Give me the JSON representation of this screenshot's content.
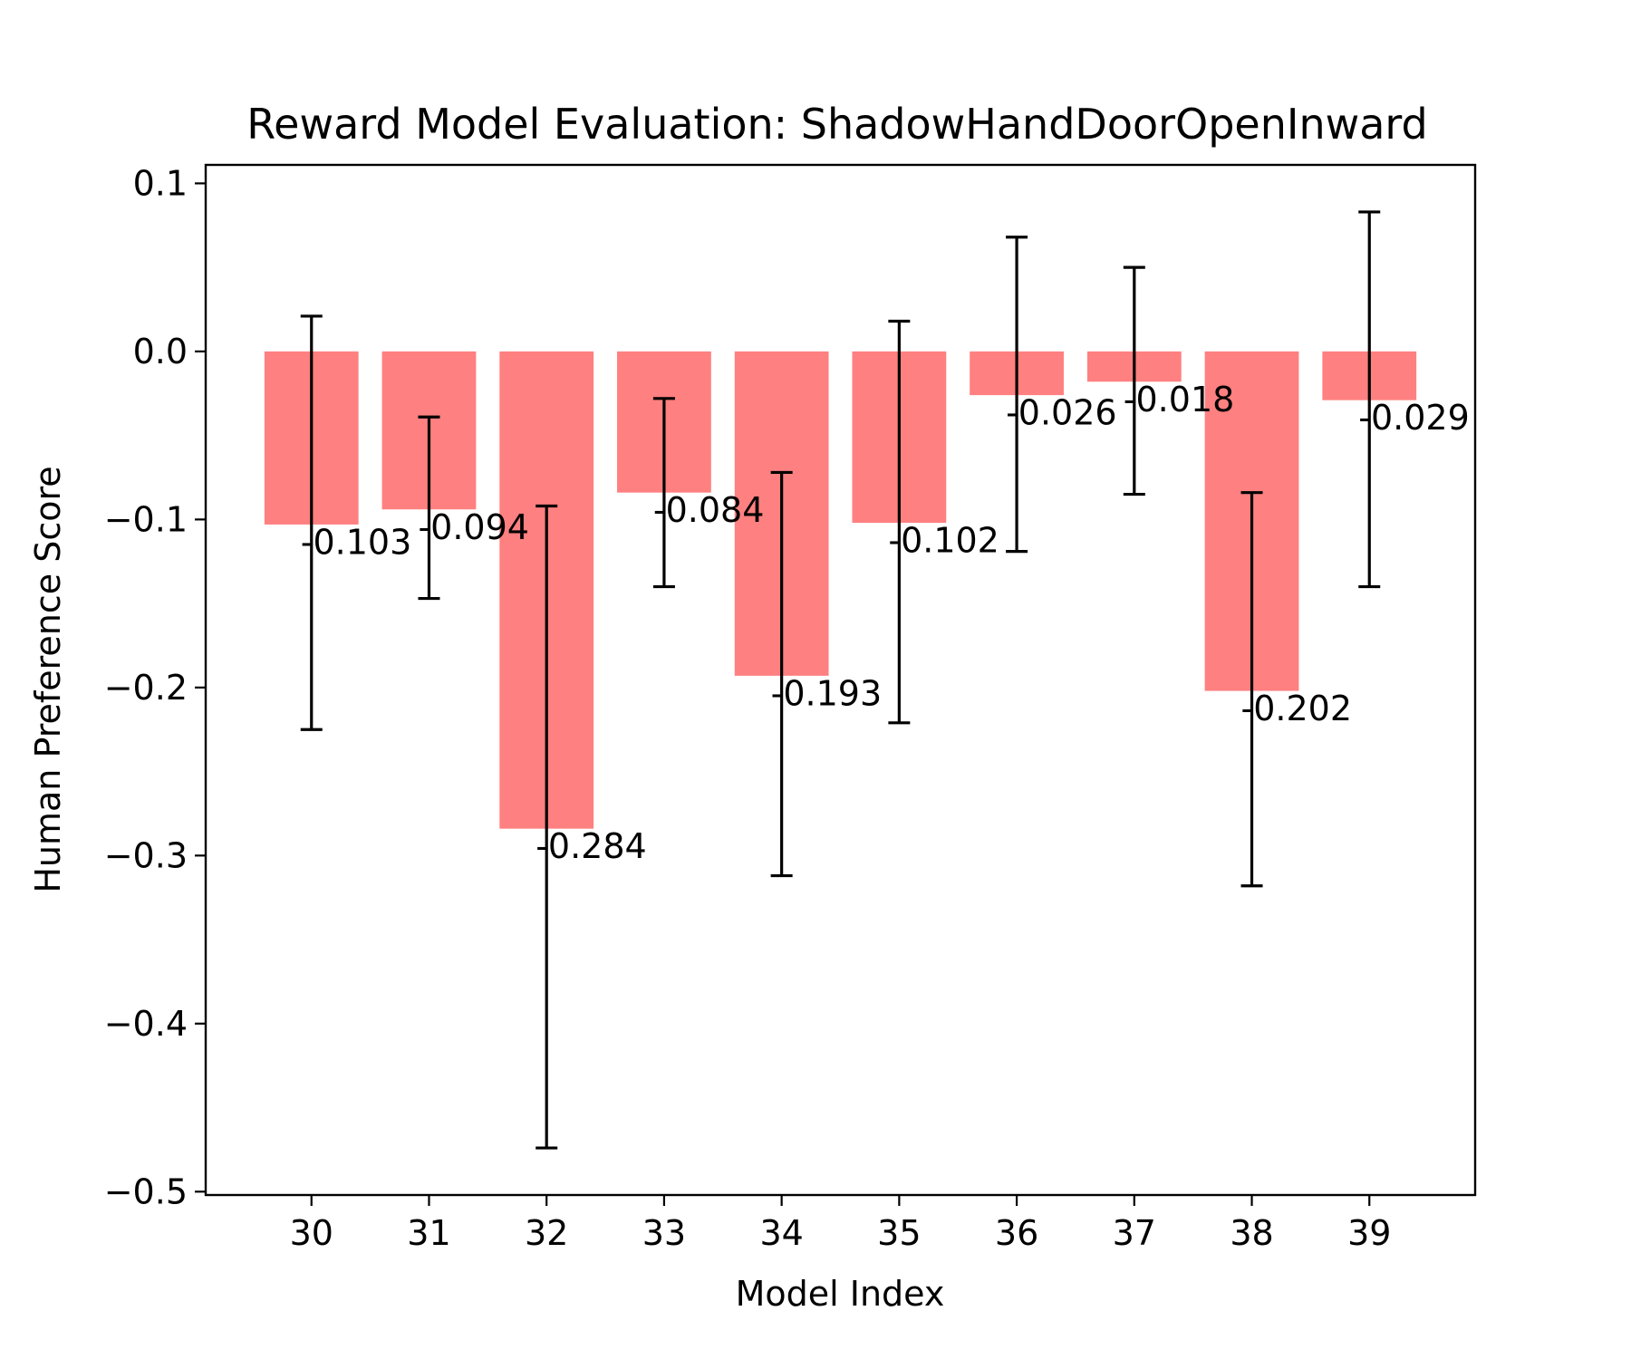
{
  "chart_data": {
    "type": "bar",
    "title": "Reward Model Evaluation: ShadowHandDoorOpenInward",
    "xlabel": "Model Index",
    "ylabel": "Human Preference Score",
    "categories": [
      "30",
      "31",
      "32",
      "33",
      "34",
      "35",
      "36",
      "37",
      "38",
      "39"
    ],
    "values": [
      -0.103,
      -0.094,
      -0.284,
      -0.084,
      -0.193,
      -0.102,
      -0.026,
      -0.018,
      -0.202,
      -0.029
    ],
    "value_labels": [
      "-0.103",
      "-0.094",
      "-0.284",
      "-0.084",
      "-0.193",
      "-0.102",
      "-0.026",
      "-0.018",
      "-0.202",
      "-0.029"
    ],
    "error_low": [
      -0.225,
      -0.147,
      -0.474,
      -0.14,
      -0.312,
      -0.221,
      -0.119,
      -0.085,
      -0.318,
      -0.14
    ],
    "error_high": [
      0.021,
      -0.039,
      -0.092,
      -0.028,
      -0.072,
      0.018,
      0.068,
      0.05,
      -0.084,
      0.083
    ],
    "ylim": [
      -0.502,
      0.111
    ],
    "yticks": [
      0.1,
      0.0,
      -0.1,
      -0.2,
      -0.3,
      -0.4,
      -0.5
    ],
    "ytick_labels": [
      "0.1",
      "0.0",
      "−0.1",
      "−0.2",
      "−0.3",
      "−0.4",
      "−0.5"
    ],
    "grid": false,
    "bar_color": "#ff8080",
    "error_color": "#000000"
  }
}
